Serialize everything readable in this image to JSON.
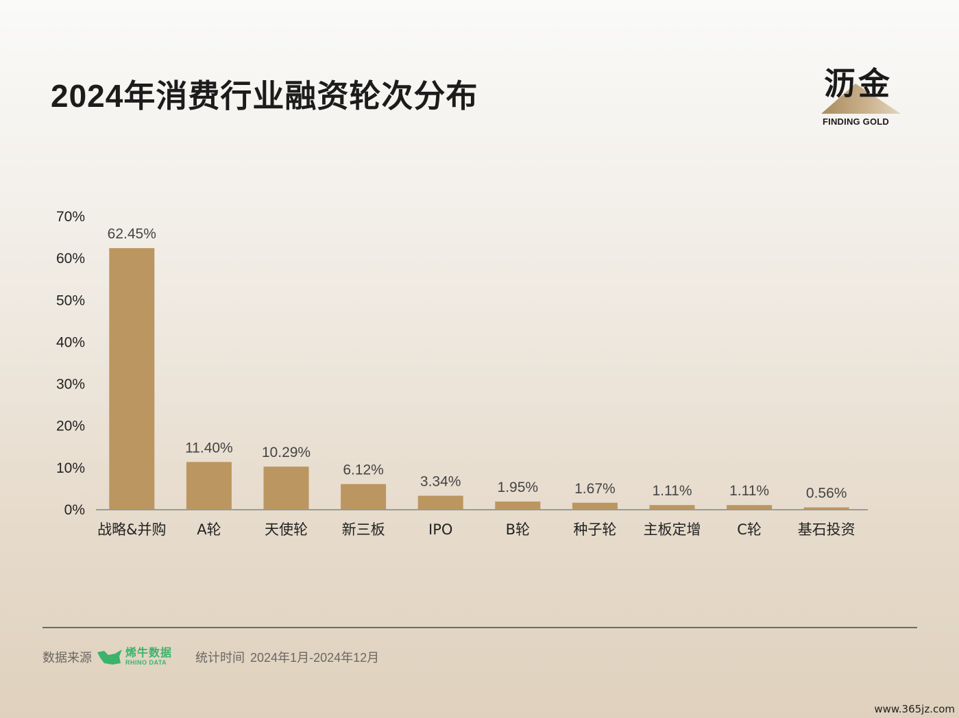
{
  "title": "2024年消费行业融资轮次分布",
  "logo": {
    "cn": "沥金",
    "en": "FINDING GOLD"
  },
  "footer": {
    "source_label": "数据来源",
    "source_brand_cn": "烯牛数据",
    "source_brand_en": "RHINO DATA",
    "period_label": "统计时间",
    "period_value": "2024年1月-2024年12月"
  },
  "watermark": "www.365jz.com",
  "colors": {
    "bar": "#bb9660",
    "axis": "#9a9a9a",
    "text": "#222222",
    "brand_green": "#3bb36a"
  },
  "chart_data": {
    "type": "bar",
    "categories": [
      "战略&并购",
      "A轮",
      "天使轮",
      "新三板",
      "IPO",
      "B轮",
      "种子轮",
      "主板定增",
      "C轮",
      "基石投资"
    ],
    "values": [
      62.45,
      11.4,
      10.29,
      6.12,
      3.34,
      1.95,
      1.67,
      1.11,
      1.11,
      0.56
    ],
    "value_labels": [
      "62.45%",
      "11.40%",
      "10.29%",
      "6.12%",
      "3.34%",
      "1.95%",
      "1.67%",
      "1.11%",
      "1.11%",
      "0.56%"
    ],
    "yticks": [
      0,
      10,
      20,
      30,
      40,
      50,
      60,
      70
    ],
    "ytick_labels": [
      "0%",
      "10%",
      "20%",
      "30%",
      "40%",
      "50%",
      "60%",
      "70%"
    ],
    "ylim": [
      0,
      70
    ],
    "grid": false,
    "legend": "none"
  }
}
